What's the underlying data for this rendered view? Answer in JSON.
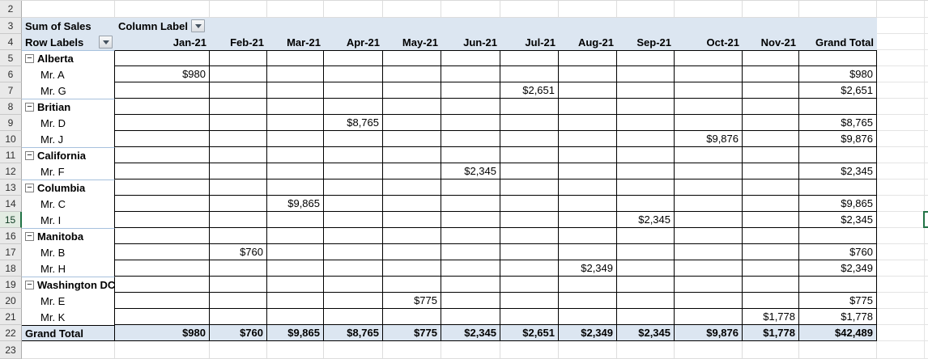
{
  "icons": {
    "collapse_glyph": "−",
    "dropdown_glyph": "▼"
  },
  "colors": {
    "header_fill": "#DCE6F1",
    "grid_border": "#000000",
    "group_divider": "#A7C1DD",
    "gridline": "#DDDDDD",
    "gutter_fill": "#E9E9E9",
    "active_cell_accent": "#217346"
  },
  "gutter": {
    "row_numbers": [
      "2",
      "3",
      "4",
      "5",
      "6",
      "7",
      "8",
      "9",
      "10",
      "11",
      "12",
      "13",
      "14",
      "15",
      "16",
      "17",
      "18",
      "19",
      "20",
      "21",
      "22",
      "23"
    ],
    "active_row_number": "15"
  },
  "pivot": {
    "value_field": "Sum of Sales",
    "column_field": "Column Label",
    "row_field": "Row Labels",
    "column_headers": [
      "Jan-21",
      "Feb-21",
      "Mar-21",
      "Apr-21",
      "May-21",
      "Jun-21",
      "Jul-21",
      "Aug-21",
      "Sep-21",
      "Oct-21",
      "Nov-21"
    ],
    "grand_total_header": "Grand Total",
    "rows": [
      {
        "type": "group",
        "label": "Alberta",
        "cells": [
          "",
          "",
          "",
          "",
          "",
          "",
          "",
          "",
          "",
          "",
          ""
        ],
        "total": ""
      },
      {
        "type": "detail",
        "label": "Mr. A",
        "cells": [
          "$980",
          "",
          "",
          "",
          "",
          "",
          "",
          "",
          "",
          "",
          ""
        ],
        "total": "$980"
      },
      {
        "type": "detail",
        "label": "Mr. G",
        "cells": [
          "",
          "",
          "",
          "",
          "",
          "",
          "$2,651",
          "",
          "",
          "",
          ""
        ],
        "total": "$2,651"
      },
      {
        "type": "group",
        "label": "Britian",
        "cells": [
          "",
          "",
          "",
          "",
          "",
          "",
          "",
          "",
          "",
          "",
          ""
        ],
        "total": ""
      },
      {
        "type": "detail",
        "label": "Mr. D",
        "cells": [
          "",
          "",
          "",
          "$8,765",
          "",
          "",
          "",
          "",
          "",
          "",
          ""
        ],
        "total": "$8,765"
      },
      {
        "type": "detail",
        "label": "Mr. J",
        "cells": [
          "",
          "",
          "",
          "",
          "",
          "",
          "",
          "",
          "",
          "$9,876",
          ""
        ],
        "total": "$9,876"
      },
      {
        "type": "group",
        "label": "California",
        "cells": [
          "",
          "",
          "",
          "",
          "",
          "",
          "",
          "",
          "",
          "",
          ""
        ],
        "total": ""
      },
      {
        "type": "detail",
        "label": "Mr. F",
        "cells": [
          "",
          "",
          "",
          "",
          "",
          "$2,345",
          "",
          "",
          "",
          "",
          ""
        ],
        "total": "$2,345"
      },
      {
        "type": "group",
        "label": "Columbia",
        "cells": [
          "",
          "",
          "",
          "",
          "",
          "",
          "",
          "",
          "",
          "",
          ""
        ],
        "total": ""
      },
      {
        "type": "detail",
        "label": "Mr. C",
        "cells": [
          "",
          "",
          "$9,865",
          "",
          "",
          "",
          "",
          "",
          "",
          "",
          ""
        ],
        "total": "$9,865"
      },
      {
        "type": "detail",
        "label": "Mr. I",
        "cells": [
          "",
          "",
          "",
          "",
          "",
          "",
          "",
          "",
          "$2,345",
          "",
          ""
        ],
        "total": "$2,345"
      },
      {
        "type": "group",
        "label": "Manitoba",
        "cells": [
          "",
          "",
          "",
          "",
          "",
          "",
          "",
          "",
          "",
          "",
          ""
        ],
        "total": ""
      },
      {
        "type": "detail",
        "label": "Mr. B",
        "cells": [
          "",
          "$760",
          "",
          "",
          "",
          "",
          "",
          "",
          "",
          "",
          ""
        ],
        "total": "$760"
      },
      {
        "type": "detail",
        "label": "Mr. H",
        "cells": [
          "",
          "",
          "",
          "",
          "",
          "",
          "",
          "$2,349",
          "",
          "",
          ""
        ],
        "total": "$2,349"
      },
      {
        "type": "group",
        "label": "Washington DC",
        "cells": [
          "",
          "",
          "",
          "",
          "",
          "",
          "",
          "",
          "",
          "",
          ""
        ],
        "total": ""
      },
      {
        "type": "detail",
        "label": "Mr. E",
        "cells": [
          "",
          "",
          "",
          "",
          "$775",
          "",
          "",
          "",
          "",
          "",
          ""
        ],
        "total": "$775"
      },
      {
        "type": "detail",
        "label": "Mr. K",
        "cells": [
          "",
          "",
          "",
          "",
          "",
          "",
          "",
          "",
          "",
          "",
          "$1,778"
        ],
        "total": "$1,778"
      }
    ],
    "grand_total_row": {
      "label": "Grand Total",
      "cells": [
        "$980",
        "$760",
        "$9,865",
        "$8,765",
        "$775",
        "$2,345",
        "$2,651",
        "$2,349",
        "$2,345",
        "$9,876",
        "$1,778"
      ],
      "total": "$42,489"
    }
  }
}
